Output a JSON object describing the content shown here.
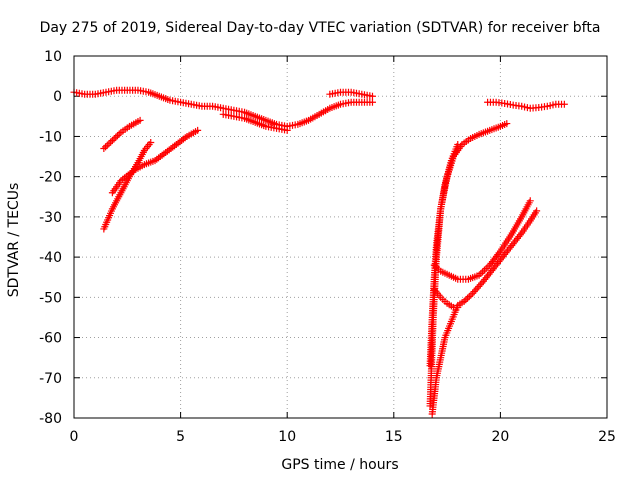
{
  "chart_data": {
    "type": "scatter",
    "title": "Day 275 of 2019, Sidereal Day-to-day VTEC variation (SDTVAR) for receiver bfta",
    "xlabel": "GPS time / hours",
    "ylabel": "SDTVAR / TECUs",
    "xlim": [
      0,
      25
    ],
    "ylim": [
      -80,
      10
    ],
    "xticks": [
      "0",
      "5",
      "10",
      "15",
      "20",
      "25"
    ],
    "yticks": [
      "10",
      "0",
      "-10",
      "-20",
      "-30",
      "-40",
      "-50",
      "-60",
      "-70",
      "-80"
    ],
    "grid": true,
    "marker": "+",
    "color": "#ff0000",
    "series": [
      {
        "x": [
          0,
          0.5,
          1,
          1.5,
          2,
          2.5,
          3,
          3.5,
          4,
          4.5,
          5,
          5.5,
          6,
          6.5,
          7,
          7.5,
          8,
          8.5,
          9,
          9.5,
          10,
          10.5,
          11,
          11.5,
          12,
          12.5,
          13,
          13.5,
          14
        ],
        "y": [
          1,
          0.5,
          0.5,
          1,
          1.5,
          1.5,
          1.5,
          1,
          0,
          -1,
          -1.5,
          -2,
          -2.5,
          -2.5,
          -3,
          -3.5,
          -4,
          -5,
          -6,
          -7,
          -7.5,
          -7,
          -6,
          -4.5,
          -3,
          -2,
          -1.5,
          -1.5,
          -1.5
        ]
      },
      {
        "x": [
          12,
          12.5,
          13,
          13.5,
          14
        ],
        "y": [
          0.5,
          1,
          1,
          0.5,
          0
        ]
      },
      {
        "x": [
          7,
          7.5,
          8,
          8.5,
          9,
          9.5,
          10
        ],
        "y": [
          -4.5,
          -5,
          -5.5,
          -6.5,
          -7.5,
          -8,
          -8.5
        ]
      },
      {
        "x": [
          1.4,
          1.8,
          2.2,
          2.6,
          3.1
        ],
        "y": [
          -13,
          -11,
          -9,
          -7.5,
          -6
        ]
      },
      {
        "x": [
          1.8,
          2.2,
          2.8,
          3.3,
          3.8,
          4.3,
          4.8,
          5.3,
          5.8
        ],
        "y": [
          -24,
          -21,
          -18.5,
          -17,
          -16,
          -14,
          -12,
          -10,
          -8.5
        ]
      },
      {
        "x": [
          1.4,
          1.8,
          2.2,
          2.6,
          3.0,
          3.3,
          3.6
        ],
        "y": [
          -33,
          -28,
          -24,
          -20,
          -16.5,
          -13.5,
          -11.5
        ]
      },
      {
        "x": [
          16.7,
          16.75,
          16.85,
          17,
          17.2,
          17.5,
          17.8,
          18.2,
          18.6,
          19,
          19.5,
          20,
          20.3
        ],
        "y": [
          -77,
          -70,
          -55,
          -40,
          -28,
          -20,
          -15,
          -12,
          -10.5,
          -9.5,
          -8.5,
          -7.5,
          -6.8
        ]
      },
      {
        "x": [
          16.7,
          16.8,
          16.9,
          17,
          17.2,
          17.4,
          17.7,
          18
        ],
        "y": [
          -67,
          -55,
          -45,
          -37,
          -28,
          -22,
          -16,
          -12
        ]
      },
      {
        "x": [
          16.9,
          17.2,
          17.6,
          18,
          18.5,
          19,
          19.5,
          20,
          20.5,
          21,
          21.4
        ],
        "y": [
          -42,
          -43.5,
          -44.5,
          -45.5,
          -45.5,
          -44.5,
          -42,
          -38.5,
          -34.5,
          -30,
          -26
        ]
      },
      {
        "x": [
          16.8,
          17,
          17.4,
          17.7,
          18,
          18.3,
          18.7,
          19.2,
          19.8,
          20.4,
          21,
          21.4,
          21.7
        ],
        "y": [
          -79,
          -70,
          -60,
          -56,
          -52,
          -51,
          -49,
          -46,
          -42,
          -38,
          -34,
          -31,
          -28.5
        ]
      },
      {
        "x": [
          16.9,
          17.2,
          17.5,
          17.8,
          18
        ],
        "y": [
          -48,
          -50,
          -51.5,
          -52.5,
          -52.5
        ]
      },
      {
        "x": [
          19.4,
          19.8,
          20.2,
          20.6,
          21,
          21.4,
          21.8,
          22.2,
          22.6,
          23
        ],
        "y": [
          -1.5,
          -1.5,
          -1.8,
          -2.2,
          -2.5,
          -3,
          -2.8,
          -2.5,
          -2,
          -2
        ]
      }
    ]
  }
}
